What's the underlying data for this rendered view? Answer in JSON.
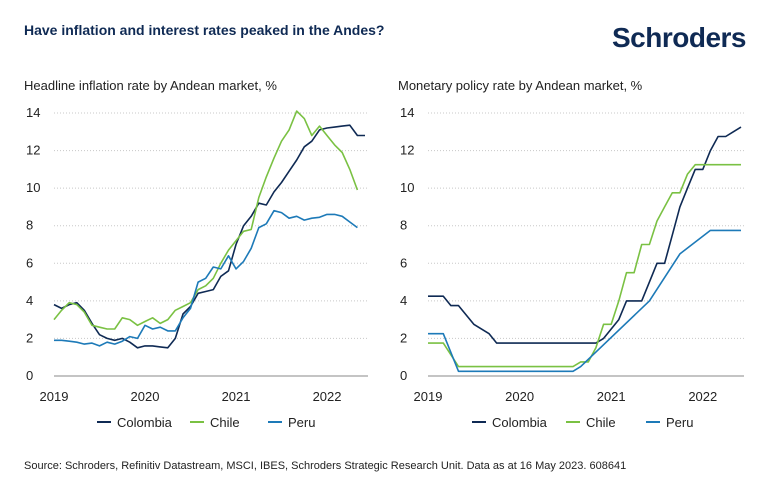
{
  "header": {
    "title": "Have inflation and interest rates peaked in the Andes?",
    "logo_text": "Schroders"
  },
  "footer": {
    "source": "Source: Schroders, Refinitiv Datastream, MSCI, IBES, Schroders Strategic Research Unit. Data as at 16 May 2023. 608641"
  },
  "colors": {
    "Colombia": "#0f2a54",
    "Chile": "#7ac143",
    "Peru": "#1d7ab8",
    "grid": "#c8c8c8"
  },
  "chart_data": [
    {
      "type": "line",
      "title": "Headline inflation rate by Andean market, %",
      "xlabel": "",
      "ylabel": "",
      "xlim": [
        2019,
        2022.45
      ],
      "ylim": [
        0,
        14
      ],
      "yticks": [
        0,
        2,
        4,
        6,
        8,
        10,
        12,
        14
      ],
      "xticks": [
        2019,
        2020,
        2021,
        2022
      ],
      "grid": true,
      "legend": "bottom",
      "series": [
        {
          "name": "Colombia",
          "x": [
            2019.0,
            2019.083,
            2019.167,
            2019.25,
            2019.333,
            2019.417,
            2019.5,
            2019.583,
            2019.667,
            2019.75,
            2019.833,
            2019.917,
            2020.0,
            2020.083,
            2020.167,
            2020.25,
            2020.333,
            2020.417,
            2020.5,
            2020.583,
            2020.667,
            2020.75,
            2020.833,
            2020.917,
            2021.0,
            2021.083,
            2021.167,
            2021.25,
            2021.333,
            2021.417,
            2021.5,
            2021.583,
            2021.667,
            2021.75,
            2021.833,
            2021.917,
            2022.0,
            2022.083,
            2022.167,
            2022.25,
            2022.333,
            2022.417
          ],
          "y": [
            3.8,
            3.6,
            3.8,
            3.9,
            3.5,
            2.8,
            2.2,
            2.0,
            1.9,
            2.0,
            1.8,
            1.5,
            1.6,
            1.6,
            1.55,
            1.5,
            2.0,
            3.3,
            3.7,
            4.4,
            4.5,
            4.6,
            5.3,
            5.6,
            7.0,
            8.0,
            8.5,
            9.2,
            9.1,
            9.8,
            10.3,
            10.9,
            11.5,
            12.2,
            12.5,
            13.1,
            13.2,
            13.25,
            13.3,
            13.35,
            12.8,
            12.8
          ]
        },
        {
          "name": "Chile",
          "x": [
            2019.0,
            2019.083,
            2019.167,
            2019.25,
            2019.333,
            2019.417,
            2019.5,
            2019.583,
            2019.667,
            2019.75,
            2019.833,
            2019.917,
            2020.0,
            2020.083,
            2020.167,
            2020.25,
            2020.333,
            2020.417,
            2020.5,
            2020.583,
            2020.667,
            2020.75,
            2020.833,
            2020.917,
            2021.0,
            2021.083,
            2021.167,
            2021.25,
            2021.333,
            2021.417,
            2021.5,
            2021.583,
            2021.667,
            2021.75,
            2021.833,
            2021.917,
            2022.0,
            2022.083,
            2022.167,
            2022.25,
            2022.333
          ],
          "y": [
            3.0,
            3.5,
            3.9,
            3.8,
            3.4,
            2.7,
            2.6,
            2.5,
            2.5,
            3.1,
            3.0,
            2.7,
            2.9,
            3.1,
            2.8,
            3.0,
            3.5,
            3.7,
            3.9,
            4.6,
            4.8,
            5.2,
            6.0,
            6.7,
            7.2,
            7.7,
            7.8,
            9.5,
            10.6,
            11.6,
            12.5,
            13.1,
            14.1,
            13.7,
            12.8,
            13.3,
            12.8,
            12.3,
            11.9,
            11.0,
            9.9
          ]
        },
        {
          "name": "Peru",
          "x": [
            2019.0,
            2019.083,
            2019.167,
            2019.25,
            2019.333,
            2019.417,
            2019.5,
            2019.583,
            2019.667,
            2019.75,
            2019.833,
            2019.917,
            2020.0,
            2020.083,
            2020.167,
            2020.25,
            2020.333,
            2020.417,
            2020.5,
            2020.583,
            2020.667,
            2020.75,
            2020.833,
            2020.917,
            2021.0,
            2021.083,
            2021.167,
            2021.25,
            2021.333,
            2021.417,
            2021.5,
            2021.583,
            2021.667,
            2021.75,
            2021.833,
            2021.917,
            2022.0,
            2022.083,
            2022.167,
            2022.25,
            2022.333
          ],
          "y": [
            1.9,
            1.9,
            1.85,
            1.8,
            1.7,
            1.75,
            1.6,
            1.8,
            1.7,
            1.85,
            2.1,
            2.0,
            2.7,
            2.5,
            2.6,
            2.4,
            2.4,
            3.1,
            3.6,
            5.0,
            5.2,
            5.8,
            5.7,
            6.4,
            5.7,
            6.1,
            6.8,
            7.9,
            8.1,
            8.8,
            8.7,
            8.4,
            8.5,
            8.3,
            8.4,
            8.45,
            8.6,
            8.6,
            8.5,
            8.2,
            7.9
          ]
        }
      ]
    },
    {
      "type": "line",
      "title": "Monetary policy rate by Andean market, %",
      "xlabel": "",
      "ylabel": "",
      "xlim": [
        2019,
        2022.45
      ],
      "ylim": [
        0,
        14
      ],
      "yticks": [
        0,
        2,
        4,
        6,
        8,
        10,
        12,
        14
      ],
      "xticks": [
        2019,
        2020,
        2021,
        2022
      ],
      "grid": true,
      "legend": "bottom",
      "series": [
        {
          "name": "Colombia",
          "x": [
            2019.0,
            2019.167,
            2019.25,
            2019.333,
            2019.5,
            2019.667,
            2019.75,
            2020.0,
            2020.5,
            2020.833,
            2020.917,
            2021.0,
            2021.083,
            2021.167,
            2021.25,
            2021.333,
            2021.417,
            2021.5,
            2021.583,
            2021.667,
            2021.75,
            2021.833,
            2021.917,
            2022.0,
            2022.083,
            2022.167,
            2022.25,
            2022.333,
            2022.417
          ],
          "y": [
            4.25,
            4.25,
            3.75,
            3.75,
            2.75,
            2.25,
            1.75,
            1.75,
            1.75,
            1.75,
            2.0,
            2.5,
            3.0,
            4.0,
            4.0,
            4.0,
            5.0,
            6.0,
            6.0,
            7.5,
            9.0,
            10.0,
            11.0,
            11.0,
            12.0,
            12.75,
            12.75,
            13.0,
            13.25
          ]
        },
        {
          "name": "Chile",
          "x": [
            2019.0,
            2019.167,
            2019.333,
            2019.5,
            2020.0,
            2020.5,
            2020.583,
            2020.667,
            2020.75,
            2020.833,
            2020.917,
            2021.0,
            2021.083,
            2021.167,
            2021.25,
            2021.333,
            2021.417,
            2021.5,
            2021.583,
            2021.667,
            2021.75,
            2021.833,
            2021.917,
            2022.0,
            2022.25,
            2022.417
          ],
          "y": [
            1.75,
            1.75,
            0.5,
            0.5,
            0.5,
            0.5,
            0.5,
            0.75,
            0.75,
            1.5,
            2.75,
            2.75,
            4.0,
            5.5,
            5.5,
            7.0,
            7.0,
            8.25,
            9.0,
            9.75,
            9.75,
            10.75,
            11.25,
            11.25,
            11.25,
            11.25
          ]
        },
        {
          "name": "Peru",
          "x": [
            2019.0,
            2019.167,
            2019.333,
            2019.5,
            2020.0,
            2020.5,
            2020.583,
            2020.667,
            2021.417,
            2021.75,
            2022.083,
            2022.417
          ],
          "y": [
            2.25,
            2.25,
            0.25,
            0.25,
            0.25,
            0.25,
            0.25,
            0.5,
            4.0,
            6.5,
            7.75,
            7.75
          ]
        }
      ]
    }
  ]
}
